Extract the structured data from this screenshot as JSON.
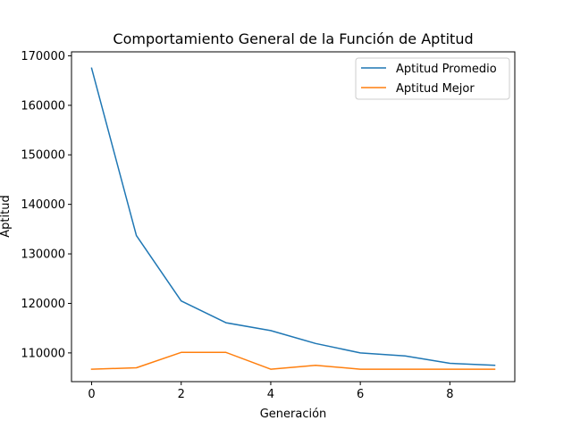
{
  "chart_data": {
    "type": "line",
    "title": "Comportamiento General de la Función de Aptitud",
    "xlabel": "Generación",
    "ylabel": "Aptitud",
    "x": [
      0,
      1,
      2,
      3,
      4,
      5,
      6,
      7,
      8,
      9
    ],
    "xlim": [
      -0.45,
      9.45
    ],
    "ylim": [
      104200,
      170800
    ],
    "xticks": [
      0,
      2,
      4,
      6,
      8
    ],
    "yticks": [
      110000,
      120000,
      130000,
      140000,
      150000,
      160000,
      170000
    ],
    "xtick_labels": [
      "0",
      "2",
      "4",
      "6",
      "8"
    ],
    "ytick_labels": [
      "110000",
      "120000",
      "130000",
      "140000",
      "150000",
      "160000",
      "170000"
    ],
    "grid": false,
    "legend_position": "top-right",
    "series": [
      {
        "name": "Aptitud Promedio",
        "color": "#1f77b4",
        "values": [
          167500,
          133700,
          120500,
          116100,
          114500,
          111900,
          110000,
          109400,
          107900,
          107500
        ]
      },
      {
        "name": "Aptitud Mejor",
        "color": "#ff7f0e",
        "values": [
          106700,
          107000,
          110100,
          110100,
          106700,
          107500,
          106700,
          106700,
          106700,
          106700
        ]
      }
    ]
  }
}
